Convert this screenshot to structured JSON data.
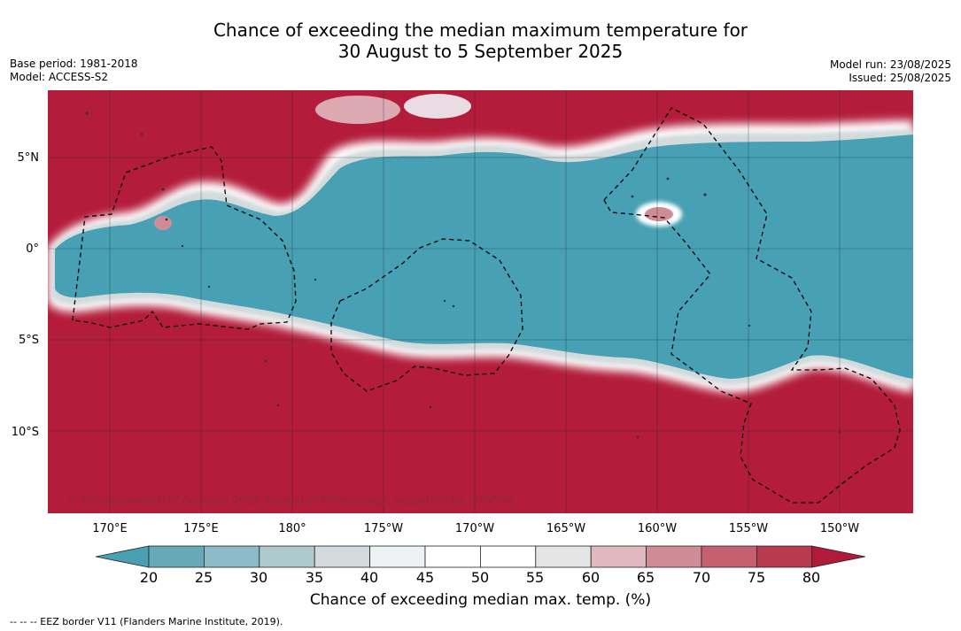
{
  "title": {
    "line1": "Chance of exceeding the median maximum temperature for",
    "line2": "30 August to 5 September 2025"
  },
  "meta_left": {
    "base_period": "Base period: 1981-2018",
    "model": "Model: ACCESS-S2"
  },
  "meta_right": {
    "model_run": "Model run: 23/08/2025",
    "issued": "Issued: 25/08/2025"
  },
  "map": {
    "lat_labels": [
      "5°N",
      "0°",
      "5°S",
      "10°S"
    ],
    "lon_labels": [
      "170°E",
      "175°E",
      "180°",
      "175°W",
      "170°W",
      "165°W",
      "160°W",
      "155°W",
      "150°W"
    ],
    "copyright": "© Commonwealth of Australia 2025, Bureau of Meteorology, supported by COSPPac",
    "colors": {
      "above": "#b31c3a",
      "below": "#47a0b3",
      "neutral": "#ffffff",
      "eez_border": "#000000"
    }
  },
  "colorbar": {
    "ticks": [
      "20",
      "25",
      "30",
      "35",
      "40",
      "45",
      "50",
      "55",
      "60",
      "65",
      "70",
      "75",
      "80"
    ],
    "colors": [
      "#4aa0b3",
      "#68a9b8",
      "#8cbac6",
      "#aecacd",
      "#d2dadc",
      "#eef2f5",
      "#ffffff",
      "#ffffff",
      "#e5e5e5",
      "#e0b8bf",
      "#d08c96",
      "#c4606f",
      "#b83a4e",
      "#b21a3a"
    ],
    "label": "Chance of exceeding median max. temp. (%)"
  },
  "footnote": "-- -- -- EEZ border V11 (Flanders Marine Institute, 2019)."
}
